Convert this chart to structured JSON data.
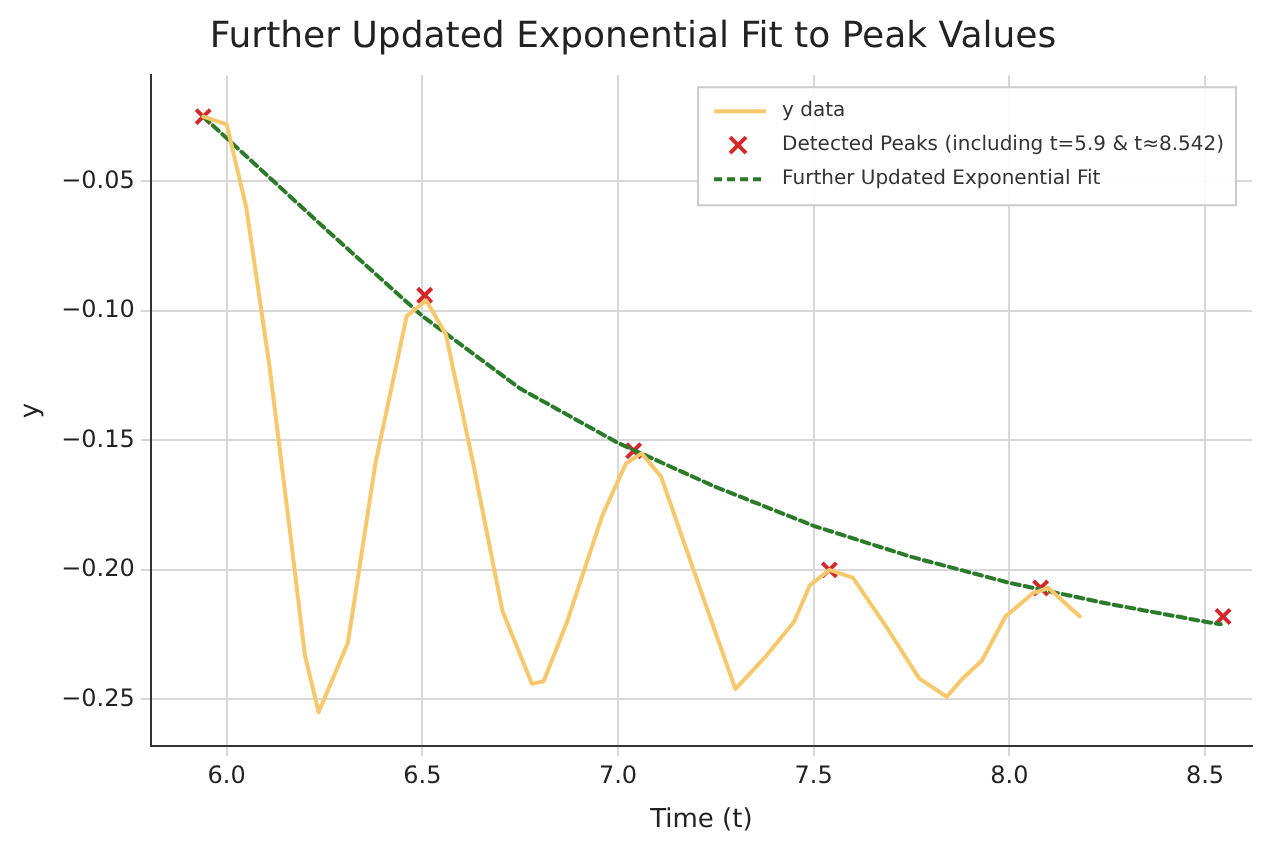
{
  "chart_data": {
    "type": "line",
    "title": "Further Updated Exponential Fit to Peak Values",
    "xlabel": "Time (t)",
    "ylabel": "y",
    "xlim": [
      5.806,
      8.62
    ],
    "xticks": [
      {
        "value": 6,
        "label": "6.0"
      },
      {
        "value": 6.5,
        "label": "6.5"
      },
      {
        "value": 7,
        "label": "7.0"
      },
      {
        "value": 7.5,
        "label": "7.5"
      },
      {
        "value": 8,
        "label": "8.0"
      },
      {
        "value": 8.5,
        "label": "8.5"
      }
    ],
    "ylim": [
      -0.268,
      -0.009
    ],
    "yticks": [
      {
        "value": -0.05,
        "label": "−0.05"
      },
      {
        "value": -0.1,
        "label": "−0.10"
      },
      {
        "value": -0.15,
        "label": "−0.15"
      },
      {
        "value": -0.2,
        "label": "−0.20"
      },
      {
        "value": -0.25,
        "label": "−0.25"
      }
    ],
    "grid": true,
    "legend": "top right",
    "series": [
      {
        "name": "y data",
        "type": "line",
        "color": "#f7c86b",
        "line_style": "solid",
        "marker": "none",
        "x": [
          5.94,
          6.0,
          6.05,
          6.11,
          6.16,
          6.2,
          6.235,
          6.31,
          6.38,
          6.46,
          6.51,
          6.56,
          6.63,
          6.705,
          6.78,
          6.81,
          6.87,
          6.96,
          7.02,
          7.06,
          7.11,
          7.23,
          7.3,
          7.38,
          7.45,
          7.49,
          7.54,
          7.6,
          7.69,
          7.77,
          7.84,
          7.88,
          7.93,
          7.99,
          8.06,
          8.1,
          8.18
        ],
        "values": [
          -0.025,
          -0.028,
          -0.06,
          -0.122,
          -0.183,
          -0.233,
          -0.255,
          -0.228,
          -0.159,
          -0.102,
          -0.096,
          -0.109,
          -0.159,
          -0.216,
          -0.244,
          -0.243,
          -0.22,
          -0.179,
          -0.159,
          -0.155,
          -0.164,
          -0.216,
          -0.246,
          -0.233,
          -0.22,
          -0.206,
          -0.2,
          -0.203,
          -0.223,
          -0.242,
          -0.249,
          -0.242,
          -0.235,
          -0.218,
          -0.209,
          -0.207,
          -0.218
        ]
      },
      {
        "name": "Detected Peaks (including t=5.9 & t≈8.542)",
        "type": "scatter",
        "color": "#d62728",
        "marker": "cross",
        "x": [
          5.94,
          6.506,
          7.04,
          7.54,
          8.08,
          8.546
        ],
        "values": [
          -0.025,
          -0.094,
          -0.154,
          -0.2,
          -0.207,
          -0.218
        ]
      },
      {
        "name": "Further Updated Exponential Fit",
        "type": "line",
        "color": "#2a7a2a",
        "line_style": "dashed",
        "marker": "none",
        "x": [
          5.94,
          6.25,
          6.5,
          6.75,
          7.0,
          7.25,
          7.5,
          7.75,
          8.0,
          8.25,
          8.5,
          8.54
        ],
        "values": [
          -0.025,
          -0.068,
          -0.102,
          -0.13,
          -0.151,
          -0.168,
          -0.183,
          -0.195,
          -0.205,
          -0.213,
          -0.22,
          -0.221
        ]
      }
    ]
  }
}
